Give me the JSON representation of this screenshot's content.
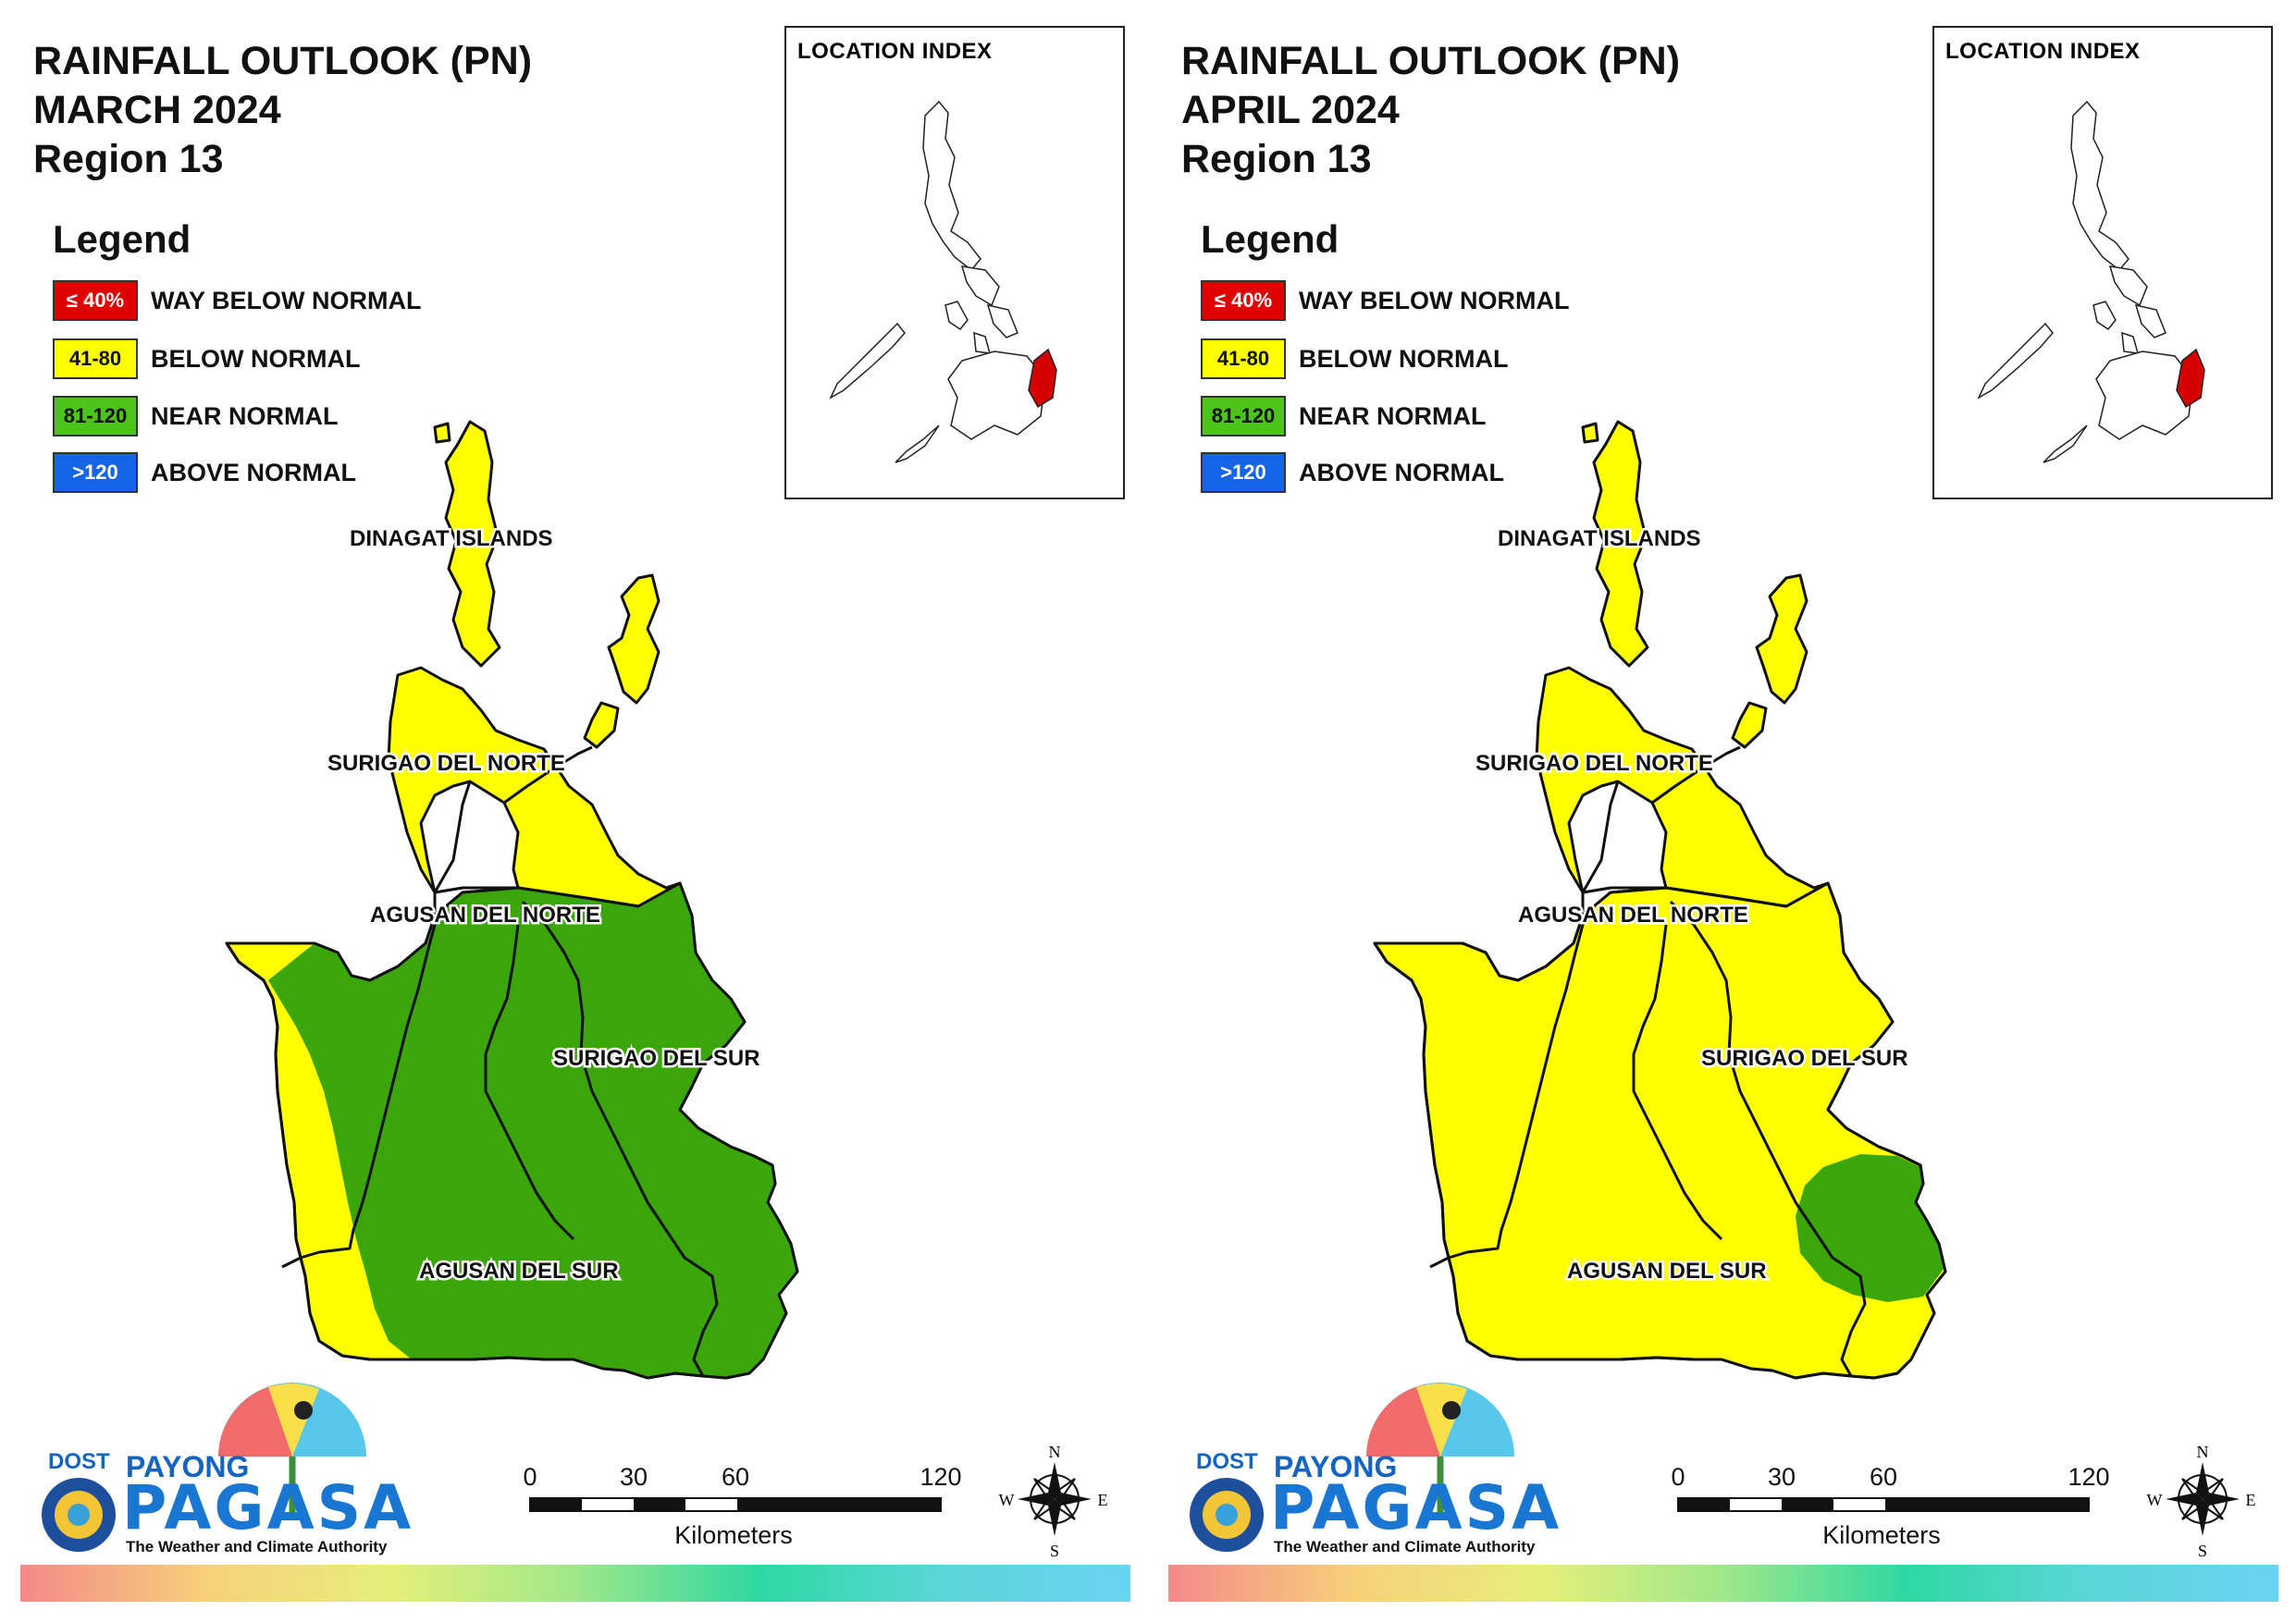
{
  "panels": [
    {
      "title_line1": "RAINFALL OUTLOOK (PN)",
      "title_line2": "MARCH 2024",
      "title_line3": "Region 13",
      "map_fill": {
        "DINAGAT ISLANDS": "BELOW NORMAL",
        "SURIGAO DEL NORTE": "BELOW NORMAL",
        "AGUSAN DEL NORTE": "NEAR NORMAL",
        "SURIGAO DEL SUR": "NEAR NORMAL",
        "AGUSAN DEL SUR": "NEAR NORMAL"
      }
    },
    {
      "title_line1": "RAINFALL OUTLOOK (PN)",
      "title_line2": "APRIL 2024",
      "title_line3": "Region 13",
      "map_fill": {
        "DINAGAT ISLANDS": "BELOW NORMAL",
        "SURIGAO DEL NORTE": "BELOW NORMAL",
        "AGUSAN DEL NORTE": "BELOW NORMAL",
        "SURIGAO DEL SUR": "BELOW NORMAL (NEAR NORMAL in southeast)",
        "AGUSAN DEL SUR": "BELOW NORMAL"
      }
    }
  ],
  "legend": {
    "title": "Legend",
    "items": [
      {
        "range": "≤ 40%",
        "label": "WAY BELOW NORMAL",
        "color": "#e00000",
        "text_color": "#ffffff"
      },
      {
        "range": "41-80",
        "label": "BELOW NORMAL",
        "color": "#ffff00",
        "text_color": "#111111"
      },
      {
        "range": "81-120",
        "label": "NEAR NORMAL",
        "color": "#4cc41c",
        "text_color": "#111111"
      },
      {
        "range": ">120",
        "label": "ABOVE NORMAL",
        "color": "#1565e6",
        "text_color": "#ffffff"
      }
    ]
  },
  "location_index": {
    "title": "LOCATION INDEX"
  },
  "province_labels": {
    "dinagat": "DINAGAT ISLANDS",
    "sdn": "SURIGAO DEL NORTE",
    "adn": "AGUSAN DEL NORTE",
    "sds": "SURIGAO DEL SUR",
    "ads": "AGUSAN DEL SUR"
  },
  "scale_bar": {
    "ticks": [
      "0",
      "30",
      "60",
      "120"
    ],
    "unit": "Kilometers"
  },
  "compass": {
    "n": "N",
    "s": "S",
    "e": "E",
    "w": "W"
  },
  "logo": {
    "dost": "DOST",
    "payong": "PAYONG",
    "pagasa": "PAGASA",
    "tagline": "The Weather and Climate Authority"
  },
  "colors": {
    "below_normal": "#ffff00",
    "near_normal": "#3aa60a",
    "highlight": "#d40000"
  }
}
